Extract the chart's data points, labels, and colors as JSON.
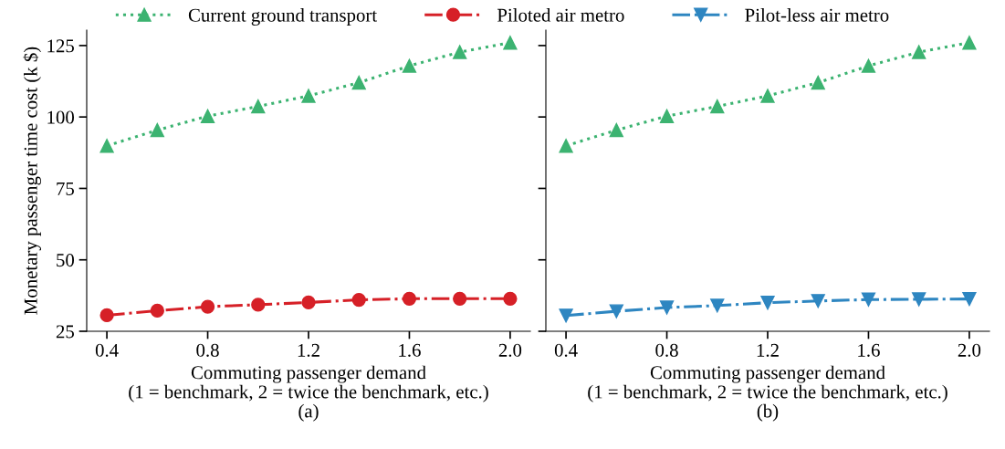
{
  "chart_data": [
    {
      "type": "line",
      "xlabel": "Commuting passenger demand\n(1 = benchmark, 2 = twice the benchmark, etc.)\n(a)",
      "ylabel": "Monetary passenger time cost (k $)",
      "x": [
        0.4,
        0.6,
        0.8,
        1.0,
        1.2,
        1.4,
        1.6,
        1.8,
        2.0
      ],
      "xlim": [
        0.32,
        2.08
      ],
      "xticks": [
        {
          "value": 0.4,
          "label": "0.4"
        },
        {
          "value": 0.8,
          "label": "0.8"
        },
        {
          "value": 1.2,
          "label": "1.2"
        },
        {
          "value": 1.6,
          "label": "1.6"
        },
        {
          "value": 2.0,
          "label": "2.0"
        }
      ],
      "ylim": [
        25,
        130.4
      ],
      "yticks": [
        25,
        50,
        75,
        100,
        125
      ],
      "grid": false,
      "legend": "top",
      "series": [
        {
          "name": "Current ground transport",
          "color": "#3cb371",
          "marker": "triangle",
          "line_style": "dotted",
          "values": [
            89.9,
            95.4,
            100.3,
            103.7,
            107.4,
            112.0,
            117.9,
            122.7,
            126.0
          ]
        },
        {
          "name": "Piloted air metro",
          "color": "#d62027",
          "marker": "circle",
          "line_style": "dashdot",
          "values": [
            30.6,
            32.2,
            33.6,
            34.3,
            35.1,
            36.0,
            36.4,
            36.4,
            36.4
          ]
        }
      ]
    },
    {
      "type": "line",
      "xlabel": "Commuting passenger demand\n(1 = benchmark, 2 = twice the benchmark, etc.)\n(b)",
      "x": [
        0.4,
        0.6,
        0.8,
        1.0,
        1.2,
        1.4,
        1.6,
        1.8,
        2.0
      ],
      "xlim": [
        0.32,
        2.08
      ],
      "xticks": [
        {
          "value": 0.4,
          "label": "0.4"
        },
        {
          "value": 0.8,
          "label": "0.8"
        },
        {
          "value": 1.2,
          "label": "1.2"
        },
        {
          "value": 1.6,
          "label": "1.6"
        },
        {
          "value": 2.0,
          "label": "2.0"
        }
      ],
      "ylim": [
        25,
        130.4
      ],
      "yticks": [
        25,
        50,
        75,
        100,
        125
      ],
      "tick_labels": "x",
      "grid": false,
      "legend": "top",
      "series": [
        {
          "name": "Current ground transport",
          "color": "#3cb371",
          "marker": "triangle",
          "line_style": "dotted",
          "values": [
            89.9,
            95.4,
            100.3,
            103.7,
            107.4,
            112.0,
            117.9,
            122.7,
            126.0
          ]
        },
        {
          "name": "Pilot-less air metro",
          "color": "#2e86c1",
          "marker": "triangle_down",
          "line_style": "dashdot",
          "values": [
            30.5,
            32.0,
            33.3,
            34.0,
            35.0,
            35.6,
            36.1,
            36.2,
            36.3
          ]
        }
      ]
    }
  ]
}
